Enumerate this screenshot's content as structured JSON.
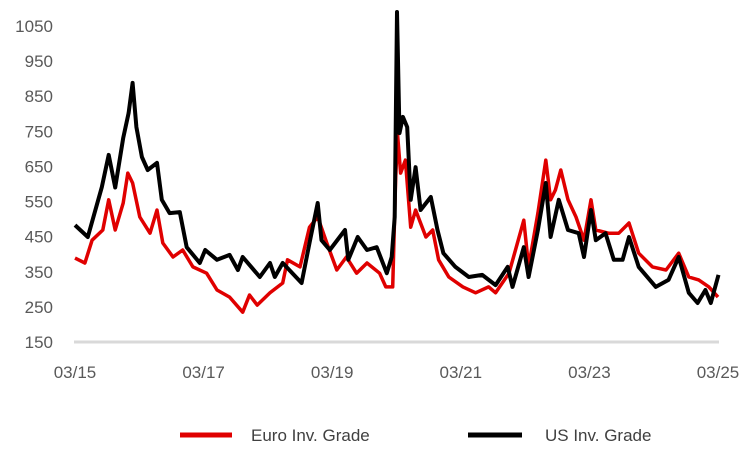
{
  "chart_data": {
    "type": "line",
    "title": "",
    "xlabel": "",
    "ylabel": "",
    "ylim": [
      150,
      1050
    ],
    "yticks": [
      "150",
      "250",
      "350",
      "450",
      "550",
      "650",
      "750",
      "850",
      "950",
      "1050"
    ],
    "xlim": [
      "2015-03-01",
      "2025-03-01"
    ],
    "xticks": [
      {
        "label": "03/15",
        "date": "2015-03-01"
      },
      {
        "label": "03/17",
        "date": "2017-03-01"
      },
      {
        "label": "03/19",
        "date": "2019-03-01"
      },
      {
        "label": "03/21",
        "date": "2021-03-01"
      },
      {
        "label": "03/23",
        "date": "2023-03-01"
      },
      {
        "label": "03/25",
        "date": "2025-03-01"
      }
    ],
    "grid": false,
    "legend_position": "bottom",
    "series": [
      {
        "name": "Euro Inv. Grade",
        "color": "#e00000",
        "points": [
          [
            "2015-03-01",
            389
          ],
          [
            "2015-04-27",
            375
          ],
          [
            "2015-06-07",
            440
          ],
          [
            "2015-08-07",
            469
          ],
          [
            "2015-09-10",
            555
          ],
          [
            "2015-10-16",
            469
          ],
          [
            "2015-12-01",
            546
          ],
          [
            "2015-12-27",
            631
          ],
          [
            "2016-01-24",
            603
          ],
          [
            "2016-03-04",
            506
          ],
          [
            "2016-05-01",
            460
          ],
          [
            "2016-06-10",
            526
          ],
          [
            "2016-07-13",
            432
          ],
          [
            "2016-09-10",
            392
          ],
          [
            "2016-11-04",
            412
          ],
          [
            "2017-01-01",
            364
          ],
          [
            "2017-03-18",
            346
          ],
          [
            "2017-05-16",
            298
          ],
          [
            "2017-07-27",
            278
          ],
          [
            "2017-10-10",
            235
          ],
          [
            "2017-11-18",
            284
          ],
          [
            "2018-01-01",
            255
          ],
          [
            "2018-03-13",
            290
          ],
          [
            "2018-05-24",
            318
          ],
          [
            "2018-06-21",
            384
          ],
          [
            "2018-09-01",
            364
          ],
          [
            "2018-10-24",
            477
          ],
          [
            "2018-12-10",
            506
          ],
          [
            "2019-02-01",
            432
          ],
          [
            "2019-03-27",
            355
          ],
          [
            "2019-05-21",
            392
          ],
          [
            "2019-07-18",
            346
          ],
          [
            "2019-09-16",
            375
          ],
          [
            "2019-11-27",
            346
          ],
          [
            "2020-01-01",
            307
          ],
          [
            "2020-02-10",
            307
          ],
          [
            "2020-02-27",
            620
          ],
          [
            "2020-03-07",
            740
          ],
          [
            "2020-03-24",
            631
          ],
          [
            "2020-04-21",
            668
          ],
          [
            "2020-05-21",
            477
          ],
          [
            "2020-06-18",
            526
          ],
          [
            "2020-08-16",
            449
          ],
          [
            "2020-09-24",
            469
          ],
          [
            "2020-10-27",
            384
          ],
          [
            "2020-12-24",
            335
          ],
          [
            "2021-03-13",
            307
          ],
          [
            "2021-05-24",
            290
          ],
          [
            "2021-08-07",
            307
          ],
          [
            "2021-09-16",
            290
          ],
          [
            "2021-12-01",
            346
          ],
          [
            "2022-02-24",
            497
          ],
          [
            "2022-03-21",
            364
          ],
          [
            "2022-05-13",
            517
          ],
          [
            "2022-06-27",
            668
          ],
          [
            "2022-07-24",
            555
          ],
          [
            "2022-08-21",
            583
          ],
          [
            "2022-09-21",
            640
          ],
          [
            "2022-11-01",
            555
          ],
          [
            "2022-12-16",
            506
          ],
          [
            "2023-02-01",
            440
          ],
          [
            "2023-03-10",
            555
          ],
          [
            "2023-04-07",
            469
          ],
          [
            "2023-06-18",
            460
          ],
          [
            "2023-08-16",
            460
          ],
          [
            "2023-10-13",
            489
          ],
          [
            "2023-12-07",
            403
          ],
          [
            "2024-02-24",
            364
          ],
          [
            "2024-05-10",
            355
          ],
          [
            "2024-07-21",
            403
          ],
          [
            "2024-09-18",
            335
          ],
          [
            "2024-11-13",
            327
          ],
          [
            "2025-01-10",
            307
          ],
          [
            "2025-03-01",
            278
          ]
        ]
      },
      {
        "name": "US Inv. Grade",
        "color": "#000000",
        "points": [
          [
            "2015-03-01",
            483
          ],
          [
            "2015-05-13",
            449
          ],
          [
            "2015-08-01",
            591
          ],
          [
            "2015-09-10",
            683
          ],
          [
            "2015-10-16",
            590
          ],
          [
            "2015-12-01",
            731
          ],
          [
            "2016-01-01",
            802
          ],
          [
            "2016-01-24",
            888
          ],
          [
            "2016-02-15",
            762
          ],
          [
            "2016-03-16",
            677
          ],
          [
            "2016-04-18",
            640
          ],
          [
            "2016-06-10",
            660
          ],
          [
            "2016-07-07",
            555
          ],
          [
            "2016-08-21",
            517
          ],
          [
            "2016-10-18",
            520
          ],
          [
            "2016-11-27",
            420
          ],
          [
            "2017-02-10",
            375
          ],
          [
            "2017-03-10",
            412
          ],
          [
            "2017-05-16",
            384
          ],
          [
            "2017-07-27",
            398
          ],
          [
            "2017-09-13",
            355
          ],
          [
            "2017-10-10",
            392
          ],
          [
            "2018-01-16",
            335
          ],
          [
            "2018-03-13",
            375
          ],
          [
            "2018-04-10",
            335
          ],
          [
            "2018-05-24",
            375
          ],
          [
            "2018-09-10",
            318
          ],
          [
            "2018-10-24",
            432
          ],
          [
            "2018-12-10",
            546
          ],
          [
            "2019-01-01",
            440
          ],
          [
            "2019-02-18",
            412
          ],
          [
            "2019-05-13",
            469
          ],
          [
            "2019-06-01",
            384
          ],
          [
            "2019-07-24",
            449
          ],
          [
            "2019-09-16",
            412
          ],
          [
            "2019-11-10",
            420
          ],
          [
            "2020-01-07",
            346
          ],
          [
            "2020-02-04",
            392
          ],
          [
            "2020-02-21",
            506
          ],
          [
            "2020-03-04",
            1090
          ],
          [
            "2020-03-18",
            745
          ],
          [
            "2020-04-07",
            791
          ],
          [
            "2020-05-01",
            762
          ],
          [
            "2020-05-21",
            555
          ],
          [
            "2020-06-18",
            648
          ],
          [
            "2020-07-16",
            526
          ],
          [
            "2020-09-13",
            563
          ],
          [
            "2020-10-21",
            469
          ],
          [
            "2020-11-24",
            403
          ],
          [
            "2021-02-01",
            364
          ],
          [
            "2021-04-16",
            335
          ],
          [
            "2021-07-01",
            341
          ],
          [
            "2021-09-16",
            312
          ],
          [
            "2021-11-24",
            364
          ],
          [
            "2021-12-21",
            307
          ],
          [
            "2022-02-24",
            420
          ],
          [
            "2022-03-21",
            335
          ],
          [
            "2022-05-13",
            469
          ],
          [
            "2022-06-27",
            603
          ],
          [
            "2022-07-24",
            449
          ],
          [
            "2022-09-10",
            555
          ],
          [
            "2022-11-01",
            469
          ],
          [
            "2023-01-01",
            460
          ],
          [
            "2023-02-01",
            392
          ],
          [
            "2023-03-10",
            526
          ],
          [
            "2023-04-07",
            440
          ],
          [
            "2023-06-01",
            460
          ],
          [
            "2023-07-18",
            384
          ],
          [
            "2023-09-07",
            384
          ],
          [
            "2023-10-13",
            449
          ],
          [
            "2023-12-07",
            364
          ],
          [
            "2024-03-13",
            307
          ],
          [
            "2024-05-24",
            327
          ],
          [
            "2024-07-21",
            392
          ],
          [
            "2024-09-18",
            290
          ],
          [
            "2024-11-07",
            261
          ],
          [
            "2024-12-21",
            298
          ],
          [
            "2025-01-21",
            261
          ],
          [
            "2025-03-04",
            341
          ]
        ]
      }
    ]
  },
  "legend": {
    "items": [
      {
        "label": "Euro Inv. Grade",
        "color": "#e00000"
      },
      {
        "label": "US Inv. Grade",
        "color": "#000000"
      }
    ]
  },
  "axis_color": "#d9d9d9"
}
